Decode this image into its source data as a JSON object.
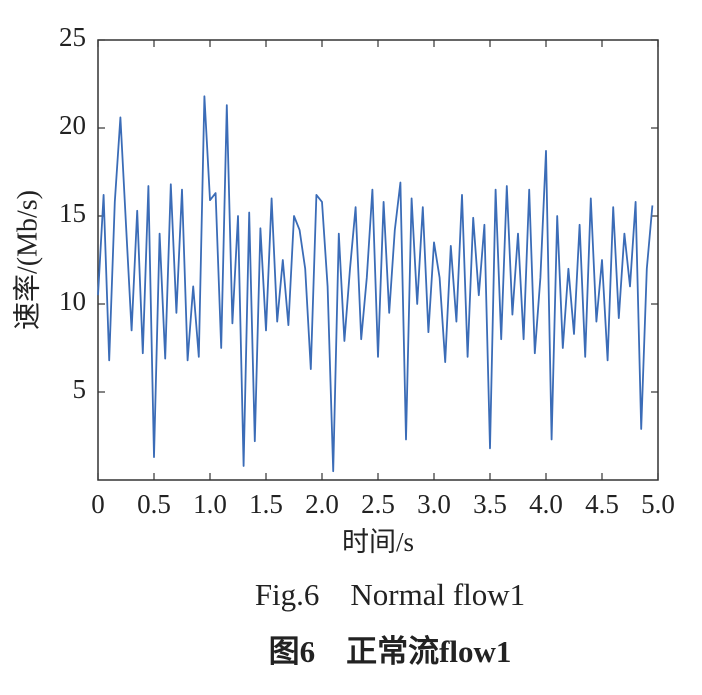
{
  "chart_data": {
    "type": "line",
    "y_label": "速率/(Mb/s)",
    "x_label": "时间/s",
    "caption_en": "Fig.6    Normal flow1",
    "caption_zh": "图6    正常流flow1",
    "xlim": [
      0,
      5
    ],
    "xticks": [
      0,
      0.5,
      {
        "value": 1,
        "label": "1.0"
      },
      1.5,
      {
        "value": 2,
        "label": "2.0"
      },
      2.5,
      {
        "value": 3,
        "label": "3.0"
      },
      3.5,
      {
        "value": 4,
        "label": "4.0"
      },
      4.5,
      {
        "value": 5,
        "label": "5.0"
      }
    ],
    "ylim": [
      0,
      25
    ],
    "yticks": [
      5,
      10,
      15,
      20,
      25
    ],
    "grid": false,
    "series": [
      {
        "color": "#3b6cb7",
        "x": [
          0,
          0.05,
          0.1,
          0.15,
          0.2,
          0.25,
          0.3,
          0.35,
          0.4,
          0.45,
          0.5,
          0.55,
          0.6,
          0.65,
          0.7,
          0.75,
          0.8,
          0.85,
          0.9,
          0.95,
          1.0,
          1.05,
          1.1,
          1.15,
          1.2,
          1.25,
          1.3,
          1.35,
          1.4,
          1.45,
          1.5,
          1.55,
          1.6,
          1.65,
          1.7,
          1.75,
          1.8,
          1.85,
          1.9,
          1.95,
          2.0,
          2.05,
          2.1,
          2.15,
          2.2,
          2.25,
          2.3,
          2.35,
          2.4,
          2.45,
          2.5,
          2.55,
          2.6,
          2.65,
          2.7,
          2.75,
          2.8,
          2.85,
          2.9,
          2.95,
          3.0,
          3.05,
          3.1,
          3.15,
          3.2,
          3.25,
          3.3,
          3.35,
          3.4,
          3.45,
          3.5,
          3.55,
          3.6,
          3.65,
          3.7,
          3.75,
          3.8,
          3.85,
          3.9,
          3.95,
          4.0,
          4.05,
          4.1,
          4.15,
          4.2,
          4.25,
          4.3,
          4.35,
          4.4,
          4.45,
          4.5,
          4.55,
          4.6,
          4.65,
          4.7,
          4.75,
          4.8,
          4.85,
          4.9,
          4.95
        ],
        "values": [
          10.5,
          16.2,
          6.8,
          15.8,
          20.6,
          14.5,
          8.5,
          15.3,
          7.2,
          16.7,
          1.3,
          14.0,
          6.9,
          16.8,
          9.5,
          16.5,
          6.8,
          11.0,
          7.0,
          21.8,
          15.9,
          16.3,
          7.5,
          21.3,
          8.9,
          15.0,
          0.8,
          15.2,
          2.2,
          14.3,
          8.5,
          16.0,
          9.0,
          12.5,
          8.8,
          15.0,
          14.2,
          12.0,
          6.3,
          16.2,
          15.8,
          11.0,
          0.5,
          14.0,
          7.9,
          12.0,
          15.5,
          8.0,
          11.5,
          16.5,
          7.0,
          15.8,
          9.5,
          14.2,
          16.9,
          2.3,
          16.0,
          10.0,
          15.5,
          8.4,
          13.5,
          11.5,
          6.7,
          13.3,
          9.0,
          16.2,
          7.0,
          14.9,
          10.5,
          14.5,
          1.8,
          16.5,
          8.0,
          16.7,
          9.4,
          14.0,
          8.0,
          16.5,
          7.2,
          11.5,
          18.7,
          2.3,
          15.0,
          7.5,
          12.0,
          8.3,
          14.5,
          7.0,
          16.0,
          9.0,
          12.5,
          6.8,
          15.5,
          9.2,
          14.0,
          11.0,
          15.8,
          2.9,
          12.0,
          15.6
        ]
      }
    ]
  }
}
